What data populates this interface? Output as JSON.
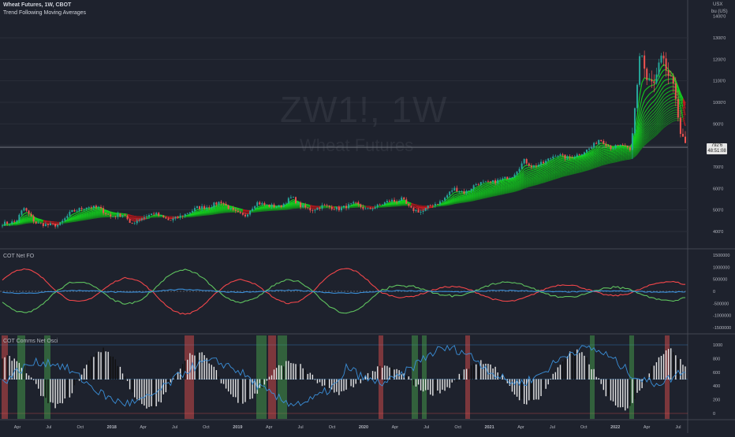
{
  "header": {
    "symbol_title": "Wheat Futures, 1W, CBOT",
    "indicator": "Trend Following Moving Averages",
    "watermark_symbol": "ZW1!, 1W",
    "watermark_name": "Wheat Futures",
    "currency": "USX",
    "unit": "bu (US)"
  },
  "main_axis": {
    "ticks": [
      "1400'0",
      "1300'0",
      "1200'0",
      "1100'0",
      "1000'0",
      "900'0",
      "800'0",
      "700'0",
      "600'0",
      "500'0",
      "400'0"
    ],
    "current_price": "792'6",
    "current_price_sub": "48:51:08"
  },
  "panel2": {
    "label": "COT Net FO",
    "ticks": [
      "1500000",
      "1000000",
      "500000",
      "0",
      "-500000",
      "-1000000",
      "-1500000"
    ]
  },
  "panel3": {
    "label": "COT Comms Net Osci",
    "ticks": [
      "1000",
      "800",
      "600",
      "400",
      "200",
      "0"
    ]
  },
  "time_axis": [
    "Apr",
    "Jul",
    "Oct",
    "2018",
    "Apr",
    "Jul",
    "Oct",
    "2019",
    "Apr",
    "Jul",
    "Oct",
    "2020",
    "Apr",
    "Jul",
    "Oct",
    "2021",
    "Apr",
    "Jul",
    "Oct",
    "2022",
    "Apr",
    "Jul"
  ],
  "colors": {
    "background": "#1e222d",
    "up": "#26a69a",
    "down": "#ef5350",
    "ribbon_green": "#27c23a",
    "ribbon_red": "#c0262c",
    "line_green": "#5fc35f",
    "line_red": "#f2464a",
    "line_blue": "#3a8fd9",
    "hist_white": "#e6e6e6",
    "hist_black": "#111111"
  }
}
